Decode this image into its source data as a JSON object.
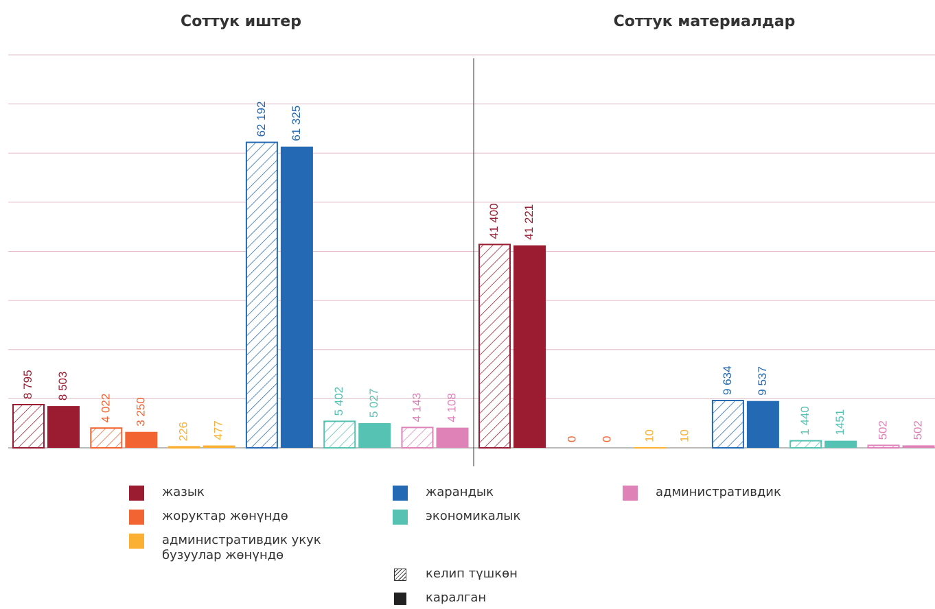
{
  "chart_data": [
    {
      "type": "bar",
      "title": "Соттук иштер",
      "series": [
        {
          "values": [
            8795,
            4022,
            226,
            62192,
            5402,
            4143
          ],
          "value_labels": [
            "8 795",
            "4 022",
            "226",
            "62 192",
            "5 402",
            "4 143"
          ]
        },
        {
          "values": [
            8503,
            3250,
            477,
            61325,
            5027,
            4108
          ],
          "value_labels": [
            "8 503",
            "3 250",
            "477",
            "61 325",
            "5 027",
            "4 108"
          ]
        }
      ],
      "ylim": [
        0,
        80000
      ],
      "yticks": [
        0,
        10000,
        20000,
        30000,
        40000,
        50000,
        60000,
        70000,
        80000
      ],
      "grid": true
    },
    {
      "type": "bar",
      "title": "Соттук материалдар",
      "series": [
        {
          "values": [
            41400,
            0,
            10,
            9634,
            1440,
            502
          ],
          "value_labels": [
            "41 400",
            "0",
            "10",
            "9 634",
            "1 440",
            "502"
          ]
        },
        {
          "values": [
            41221,
            0,
            10,
            9537,
            1451,
            502
          ],
          "value_labels": [
            "41 221",
            "0",
            "10",
            "9 537",
            "1451",
            "502"
          ]
        }
      ],
      "ylim": [
        0,
        80000
      ],
      "yticks": [
        0,
        10000,
        20000,
        30000,
        40000,
        50000,
        60000,
        70000,
        80000
      ],
      "grid": true
    }
  ],
  "legend": {
    "categories": [
      {
        "name": "жазык",
        "color": "#9b1b30"
      },
      {
        "name": "жоруктар жөнүндө",
        "color": "#f26431"
      },
      {
        "name": "административдик укук бузуулар жөнүндө",
        "color": "#fbb034"
      },
      {
        "name": "жарандык",
        "color": "#2369b3"
      },
      {
        "name": "экономикалык",
        "color": "#56c2b3"
      },
      {
        "name": "административдик",
        "color": "#df82b7"
      }
    ],
    "series": [
      {
        "name": "келип түшкөн",
        "style": "hatched"
      },
      {
        "name": "каралган",
        "style": "solid"
      }
    ]
  }
}
